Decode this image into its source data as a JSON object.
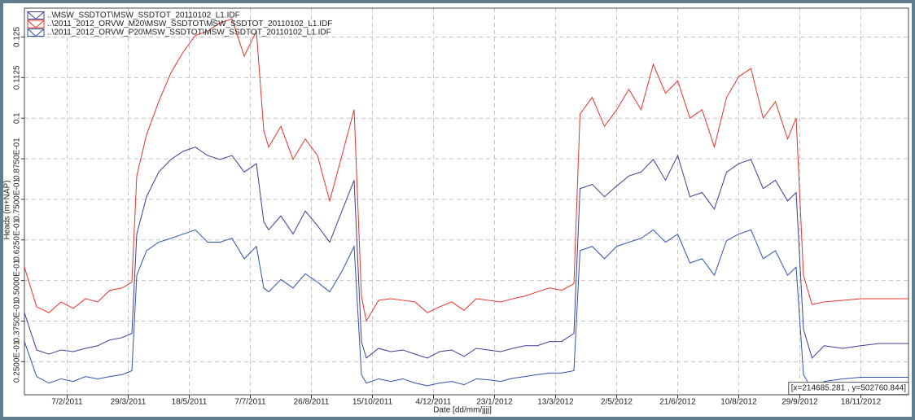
{
  "chart_data": {
    "type": "line",
    "ylabel": "Heads (m+NAP)",
    "xlabel": "Date [dd/mm/jjjj]",
    "annotation": "[x=214685.281 , y=502760.844]",
    "grid": true,
    "legend": "top-left",
    "xlim": [
      "3/1/2011",
      "27/12/2012"
    ],
    "xticks": [
      "7/2/2011",
      "29/3/2011",
      "18/5/2011",
      "7/7/2011",
      "26/8/2011",
      "15/10/2011",
      "4/12/2011",
      "23/1/2012",
      "13/3/2012",
      "2/5/2012",
      "21/6/2012",
      "10/8/2012",
      "29/9/2012",
      "18/11/2012"
    ],
    "ylim": [
      0.0148,
      0.1339
    ],
    "yticks": [
      {
        "value": 0.025,
        "label": "0.2500E-01"
      },
      {
        "value": 0.0375,
        "label": "0.3750E-01"
      },
      {
        "value": 0.05,
        "label": "0.5000E-01"
      },
      {
        "value": 0.0625,
        "label": "0.6250E-01"
      },
      {
        "value": 0.075,
        "label": "0.7500E-01"
      },
      {
        "value": 0.0875,
        "label": "0.8750E-01"
      },
      0.1,
      0.1125,
      0.125
    ],
    "x": [
      "3/1/2011",
      "13/1/2011",
      "23/1/2011",
      "2/2/2011",
      "12/2/2011",
      "22/2/2011",
      "4/3/2011",
      "14/3/2011",
      "24/3/2011",
      "1/4/2011",
      "5/4/2011",
      "13/4/2011",
      "23/4/2011",
      "3/5/2011",
      "13/5/2011",
      "23/5/2011",
      "2/6/2011",
      "12/6/2011",
      "22/6/2011",
      "2/7/2011",
      "12/7/2011",
      "18/7/2011",
      "22/7/2011",
      "1/8/2011",
      "11/8/2011",
      "21/8/2011",
      "31/8/2011",
      "10/9/2011",
      "20/9/2011",
      "30/9/2011",
      "6/10/2011",
      "10/10/2011",
      "20/10/2011",
      "30/10/2011",
      "9/11/2011",
      "19/11/2011",
      "29/11/2011",
      "9/12/2011",
      "19/12/2011",
      "29/12/2011",
      "8/1/2012",
      "18/1/2012",
      "28/1/2012",
      "7/2/2012",
      "17/2/2012",
      "27/2/2012",
      "8/3/2012",
      "18/3/2012",
      "28/3/2012",
      "2/4/2012",
      "12/4/2012",
      "22/4/2012",
      "2/5/2012",
      "12/5/2012",
      "22/5/2012",
      "1/6/2012",
      "11/6/2012",
      "21/6/2012",
      "1/7/2012",
      "11/7/2012",
      "21/7/2012",
      "31/7/2012",
      "10/8/2012",
      "20/8/2012",
      "30/8/2012",
      "9/9/2012",
      "19/9/2012",
      "26/9/2012",
      "2/10/2012",
      "9/10/2012",
      "19/10/2012",
      "3/11/2012",
      "18/11/2012",
      "3/12/2012",
      "27/12/2012"
    ],
    "series": [
      {
        "name": "..\\MSW_SSDTOT\\MSW_SSDTOT_20110102_L1.IDF",
        "color": "#3d3d98",
        "values": [
          0.0401,
          0.0286,
          0.0273,
          0.0286,
          0.0281,
          0.0291,
          0.0299,
          0.0317,
          0.0324,
          0.0337,
          0.0643,
          0.0758,
          0.0834,
          0.0873,
          0.0898,
          0.0911,
          0.0885,
          0.0873,
          0.0885,
          0.0834,
          0.086,
          0.0681,
          0.0656,
          0.0699,
          0.0643,
          0.0714,
          0.0669,
          0.0618,
          0.0714,
          0.0809,
          0.0312,
          0.0261,
          0.0291,
          0.0281,
          0.0286,
          0.0273,
          0.0261,
          0.0281,
          0.0286,
          0.0266,
          0.0291,
          0.0286,
          0.0281,
          0.0291,
          0.0299,
          0.0299,
          0.0312,
          0.0312,
          0.0337,
          0.0783,
          0.0796,
          0.0758,
          0.0791,
          0.0822,
          0.0834,
          0.0873,
          0.0809,
          0.0885,
          0.0758,
          0.0771,
          0.072,
          0.0834,
          0.086,
          0.0873,
          0.0783,
          0.0809,
          0.0745,
          0.0771,
          0.035,
          0.0261,
          0.0299,
          0.0291,
          0.0299,
          0.0306,
          0.0306
        ]
      },
      {
        "name": "..\\2011_2012_ORVW_M20\\MSW_SSDTOT\\MSW_SSDTOT_20110102_L1.IDF",
        "color": "#e8322c",
        "values": [
          0.0541,
          0.0419,
          0.0401,
          0.0434,
          0.0414,
          0.0444,
          0.0434,
          0.047,
          0.0477,
          0.0495,
          0.0822,
          0.0949,
          0.1051,
          0.114,
          0.1204,
          0.1255,
          0.1268,
          0.1293,
          0.1306,
          0.1191,
          0.1268,
          0.0962,
          0.0911,
          0.0975,
          0.0873,
          0.0936,
          0.0885,
          0.0745,
          0.0885,
          0.1026,
          0.0452,
          0.0375,
          0.0439,
          0.0444,
          0.0439,
          0.0434,
          0.0401,
          0.0419,
          0.0434,
          0.0408,
          0.0444,
          0.0439,
          0.0434,
          0.0444,
          0.0452,
          0.0465,
          0.0477,
          0.047,
          0.049,
          0.1013,
          0.1064,
          0.0975,
          0.1026,
          0.1089,
          0.1026,
          0.1166,
          0.1077,
          0.1115,
          0.1,
          0.1026,
          0.0911,
          0.1064,
          0.1128,
          0.1153,
          0.1,
          0.1051,
          0.0936,
          0.1,
          0.0516,
          0.0426,
          0.0434,
          0.0439,
          0.0444,
          0.0444,
          0.0444
        ]
      },
      {
        "name": "..\\2011_2012_ORVW_P20\\MSW_SSDTOT\\MSW_SSDTOT_20110102_L1.IDF",
        "color": "#2c52b0",
        "values": [
          0.0312,
          0.0204,
          0.0184,
          0.0197,
          0.0189,
          0.0204,
          0.0197,
          0.0204,
          0.021,
          0.0222,
          0.0516,
          0.0592,
          0.0618,
          0.063,
          0.0643,
          0.0656,
          0.0618,
          0.0618,
          0.063,
          0.0567,
          0.0605,
          0.0477,
          0.0465,
          0.0503,
          0.0477,
          0.0521,
          0.0495,
          0.0465,
          0.0528,
          0.0605,
          0.021,
          0.0184,
          0.0197,
          0.0189,
          0.0197,
          0.0184,
          0.0176,
          0.0184,
          0.0189,
          0.0179,
          0.0197,
          0.0194,
          0.0189,
          0.0199,
          0.0204,
          0.021,
          0.0215,
          0.0215,
          0.0222,
          0.0592,
          0.0605,
          0.0567,
          0.0605,
          0.0618,
          0.063,
          0.0656,
          0.0618,
          0.0643,
          0.0554,
          0.0567,
          0.0516,
          0.0623,
          0.0643,
          0.0656,
          0.0567,
          0.0592,
          0.0516,
          0.0541,
          0.021,
          0.0164,
          0.0189,
          0.0197,
          0.0202,
          0.0202,
          0.0202
        ]
      }
    ]
  }
}
